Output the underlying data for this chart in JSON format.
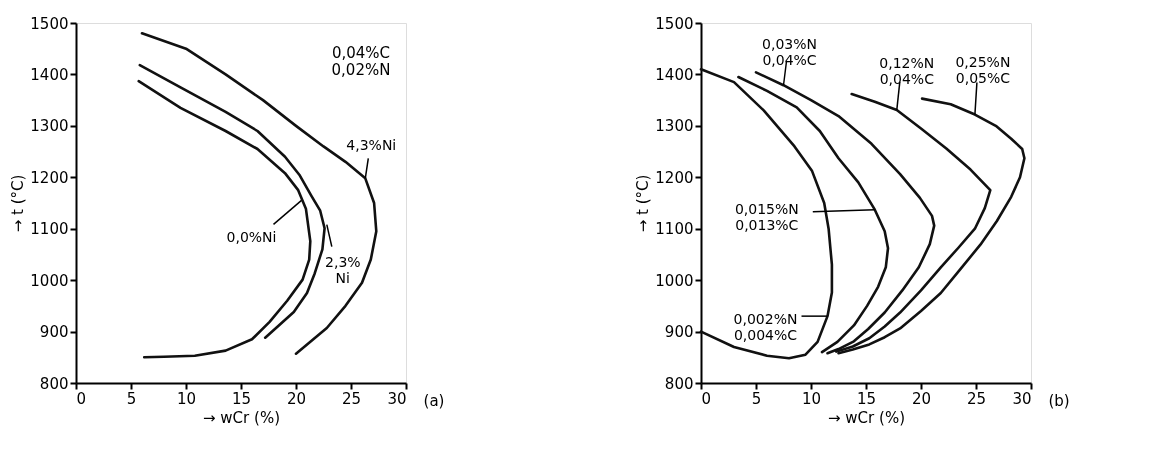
{
  "chart_data": [
    {
      "type": "line",
      "xlabel": "→ wCr (%)",
      "ylabel": "→ t (°C)",
      "xlim": [
        0,
        30
      ],
      "ylim": [
        800,
        1500
      ],
      "xticks": [
        0,
        5,
        10,
        15,
        20,
        25,
        30
      ],
      "yticks": [
        800,
        900,
        1000,
        1100,
        1200,
        1300,
        1400,
        1500
      ],
      "grid": false,
      "legend": false,
      "line_style": "solid",
      "marker": "none",
      "series": [
        {
          "color": "#111111",
          "x": [
            6.2,
            8,
            10.8,
            13.6,
            16,
            17.6,
            19.2,
            20.6,
            21.2,
            21.3,
            20.9,
            20.2,
            19,
            16.5,
            13.6,
            9.5,
            5.7
          ],
          "values": [
            850,
            851,
            853,
            863,
            885,
            919,
            960,
            1001,
            1040,
            1076,
            1139,
            1175,
            1208,
            1255,
            1290,
            1335,
            1387
          ]
        },
        {
          "color": "#111111",
          "x": [
            17.2,
            19.8,
            21,
            21.7,
            22.4,
            22.6,
            22.2,
            21.4,
            20.3,
            19,
            16.5,
            13.6,
            9.5,
            5.8
          ],
          "values": [
            888,
            938,
            975,
            1013,
            1060,
            1101,
            1135,
            1164,
            1205,
            1240,
            1290,
            1327,
            1375,
            1418
          ]
        },
        {
          "color": "#111111",
          "x": [
            20,
            22.8,
            24.5,
            26,
            26.8,
            27.3,
            27.1,
            26.3,
            24.5,
            22.5,
            20,
            17,
            13.6,
            10,
            6
          ],
          "values": [
            857,
            907,
            950,
            995,
            1040,
            1095,
            1150,
            1198,
            1230,
            1260,
            1300,
            1350,
            1400,
            1450,
            1480
          ]
        }
      ],
      "annotations": [
        "0,04%C\n0,02%N",
        "(a)",
        {
          "text": "0,0%Ni",
          "x": 20.5,
          "y": 1155
        },
        {
          "text": "2,3%\nNi",
          "x": 22.8,
          "y": 1108
        },
        {
          "text": "4,3%Ni",
          "x": 26.3,
          "y": 1198
        }
      ]
    },
    {
      "type": "line",
      "xlabel": "→ wCr (%)",
      "ylabel": "→ t (°C)",
      "xlim": [
        0,
        30
      ],
      "ylim": [
        800,
        1500
      ],
      "xticks": [
        0,
        5,
        10,
        15,
        20,
        25,
        30
      ],
      "yticks": [
        800,
        900,
        1000,
        1100,
        1200,
        1300,
        1400,
        1500
      ],
      "grid": false,
      "legend": false,
      "line_style": "solid",
      "marker": "none",
      "series": [
        {
          "color": "#111111",
          "x": [
            0,
            3,
            5.7,
            8.5,
            10.1,
            11.2,
            11.6,
            11.9,
            11.9,
            11.5,
            10.6,
            9.5,
            8,
            6,
            3,
            0
          ],
          "values": [
            1410,
            1385,
            1330,
            1260,
            1212,
            1150,
            1100,
            1030,
            976,
            930,
            880,
            855,
            848,
            853,
            870,
            900
          ]
        },
        {
          "color": "#111111",
          "x": [
            3.4,
            6,
            8.7,
            10.8,
            12.5,
            14.3,
            15.8,
            16.7,
            17,
            16.8,
            16.1,
            15.1,
            13.9,
            12.4,
            11
          ],
          "values": [
            1395,
            1368,
            1336,
            1290,
            1237,
            1190,
            1137,
            1095,
            1062,
            1025,
            987,
            950,
            912,
            880,
            860
          ]
        },
        {
          "color": "#111111",
          "x": [
            5,
            7.5,
            10,
            12.5,
            15.5,
            18.1,
            19.9,
            21,
            21.2,
            20.8,
            19.8,
            18.3,
            16.7,
            15.2,
            13.9,
            12.5,
            11.5
          ],
          "values": [
            1404,
            1379,
            1350,
            1319,
            1265,
            1206,
            1160,
            1125,
            1106,
            1070,
            1025,
            980,
            937,
            905,
            881,
            866,
            858
          ]
        },
        {
          "color": "#111111",
          "x": [
            13.7,
            15.8,
            17.8,
            20,
            22.3,
            24.5,
            26.3,
            25.8,
            24.9,
            23.4,
            21.8,
            20,
            18.1,
            16.7,
            15.3,
            13.8,
            12.3
          ],
          "values": [
            1362,
            1347,
            1331,
            1295,
            1256,
            1215,
            1175,
            1140,
            1100,
            1063,
            1025,
            980,
            937,
            910,
            887,
            871,
            861
          ]
        },
        {
          "color": "#111111",
          "x": [
            20.1,
            22.7,
            24.9,
            26.8,
            28.2,
            29.2,
            29.4,
            29,
            28.2,
            26.9,
            25.4,
            23.6,
            21.8,
            20,
            18.1,
            16.7,
            15.3,
            13.8,
            12.5
          ],
          "values": [
            1353,
            1342,
            1322,
            1300,
            1275,
            1255,
            1237,
            1200,
            1162,
            1115,
            1069,
            1022,
            975,
            940,
            906,
            889,
            875,
            865,
            858
          ]
        }
      ],
      "annotations": [
        "(b)",
        {
          "text": "0,002%N\n0,004%C",
          "x": 11.5,
          "y": 930
        },
        {
          "text": "0,015%N\n0,013%C",
          "x": 15.8,
          "y": 1137
        },
        {
          "text": "0,03%N\n0,04%C",
          "x": 7.5,
          "y": 1379
        },
        {
          "text": "0,12%N\n0,04%C",
          "x": 17.8,
          "y": 1331
        },
        {
          "text": "0,25%N\n0,05%C",
          "x": 24.9,
          "y": 1322
        }
      ]
    }
  ]
}
